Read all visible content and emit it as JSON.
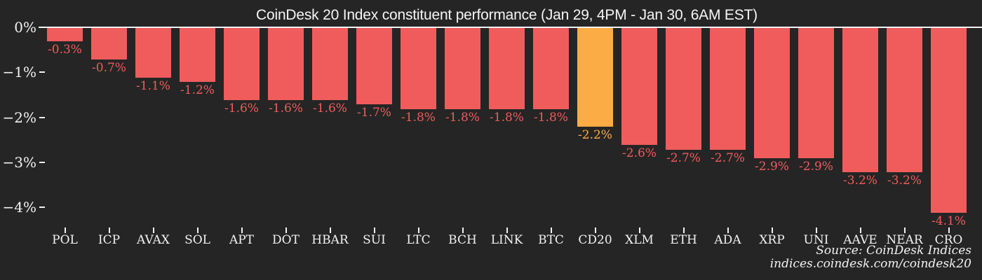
{
  "title": "CoinDesk 20 Index constituent performance (Jan 29, 4PM - Jan 30, 6AM EST)",
  "source": {
    "line1": "Source: CoinDesk Indices",
    "line2": "indices.coindesk.com/coindesk20"
  },
  "colors": {
    "background": "#252525",
    "bar": "#f05c5c",
    "highlight_bar": "#fbac44",
    "axis": "#f2f2f2",
    "title_text": "#f5f5f5"
  },
  "chart_data": {
    "type": "bar",
    "title": "CoinDesk 20 Index constituent performance (Jan 29, 4PM - Jan 30, 6AM EST)",
    "xlabel": "",
    "ylabel": "",
    "categories": [
      "POL",
      "ICP",
      "AVAX",
      "SOL",
      "APT",
      "DOT",
      "HBAR",
      "SUI",
      "LTC",
      "BCH",
      "LINK",
      "BTC",
      "CD20",
      "XLM",
      "ETH",
      "ADA",
      "XRP",
      "UNI",
      "AAVE",
      "NEAR",
      "CRO"
    ],
    "values": [
      -0.3,
      -0.7,
      -1.1,
      -1.2,
      -1.6,
      -1.6,
      -1.6,
      -1.7,
      -1.8,
      -1.8,
      -1.8,
      -1.8,
      -2.2,
      -2.6,
      -2.7,
      -2.7,
      -2.9,
      -2.9,
      -3.2,
      -3.2,
      -4.1
    ],
    "value_labels": [
      "-0.3%",
      "-0.7%",
      "-1.1%",
      "-1.2%",
      "-1.6%",
      "-1.6%",
      "-1.6%",
      "-1.7%",
      "-1.8%",
      "-1.8%",
      "-1.8%",
      "-1.8%",
      "-2.2%",
      "-2.6%",
      "-2.7%",
      "-2.7%",
      "-2.9%",
      "-2.9%",
      "-3.2%",
      "-3.2%",
      "-4.1%"
    ],
    "highlight_category": "CD20",
    "highlight_index": 12,
    "yticks": [
      0,
      -1,
      -2,
      -3,
      -4
    ],
    "ytick_labels": [
      "0%",
      "−1%",
      "−2%",
      "−3%",
      "−4%"
    ],
    "ylim": [
      -4.5,
      0
    ],
    "grid": false,
    "legend": false,
    "bar_color": "#f05c5c",
    "highlight_color": "#fbac44"
  }
}
